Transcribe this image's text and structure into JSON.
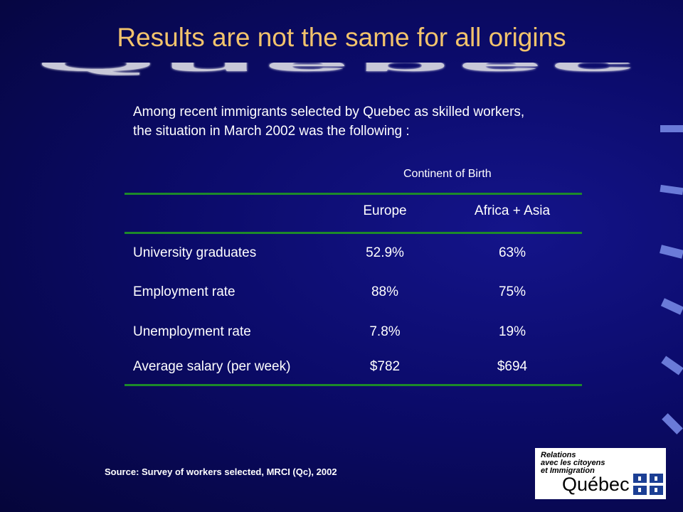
{
  "title": "Results are not the same for all origins",
  "banner": "Québec",
  "intro": "Among recent immigrants selected by Quebec as skilled workers, the situation in March 2002 was the following :",
  "table": {
    "group_header": "Continent of Birth",
    "columns": [
      "Europe",
      "Africa + Asia"
    ],
    "rows": [
      [
        "University graduates",
        "52.9%",
        "63%"
      ],
      [
        "Employment rate",
        "88%",
        "75%"
      ],
      [
        "Unemployment rate",
        "7.8%",
        "19%"
      ],
      [
        "Average salary (per week)",
        "$782",
        "$694"
      ]
    ]
  },
  "source": "Source: Survey of workers selected, MRCI (Qc), 2002",
  "logo": {
    "lines": [
      "Relations",
      "avec les citoyens",
      "et Immigration"
    ],
    "name": "Québec"
  }
}
